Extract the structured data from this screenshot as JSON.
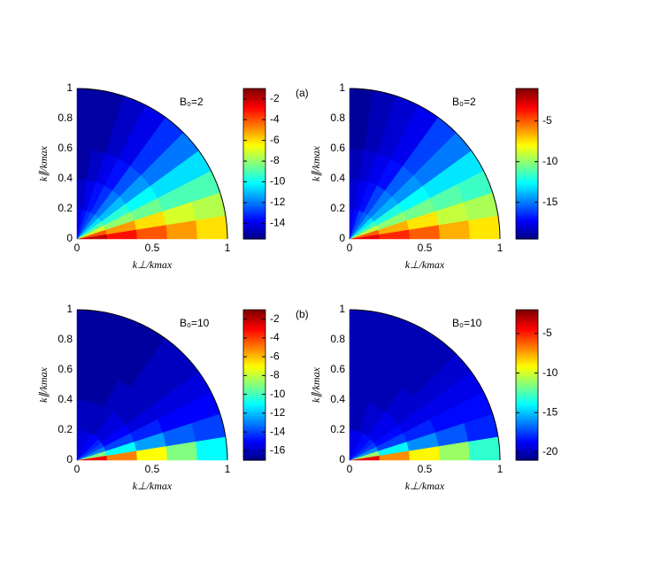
{
  "chart_data": [
    {
      "type": "polar-heatmap",
      "panel_label": "(a)",
      "annotation": "B₀=2",
      "xlabel": "k⊥/kmax",
      "ylabel": "k∥/kmax",
      "xlim": [
        0,
        1
      ],
      "ylim": [
        0,
        1
      ],
      "xticks": [
        0,
        0.5,
        1
      ],
      "yticks": [
        0,
        0.2,
        0.4,
        0.6,
        0.8,
        1
      ],
      "theta_bins": [
        0,
        9,
        18,
        27,
        36,
        45,
        54,
        63,
        72,
        81,
        90
      ],
      "r_bins": [
        0,
        0.2,
        0.4,
        0.6,
        0.8,
        1
      ],
      "colormap": "jet",
      "clim": [
        -15.5,
        -1
      ],
      "cticks": [
        -2,
        -4,
        -6,
        -8,
        -10,
        -12,
        -14
      ],
      "values": [
        [
          -2,
          -3,
          -4,
          -5,
          -6
        ],
        [
          -4,
          -5,
          -6,
          -7,
          -7.5
        ],
        [
          -7,
          -8,
          -8.5,
          -9,
          -9
        ],
        [
          -9,
          -9.5,
          -10,
          -10.5,
          -10.5
        ],
        [
          -10.5,
          -11,
          -11.5,
          -12,
          -12
        ],
        [
          -11.5,
          -12,
          -12.5,
          -13,
          -13
        ],
        [
          -12.5,
          -13,
          -13.5,
          -14,
          -14
        ],
        [
          -13,
          -13.5,
          -14,
          -14.5,
          -14.5
        ],
        [
          -13.5,
          -14,
          -14.5,
          -15,
          -15
        ],
        [
          -14,
          -14.5,
          -15,
          -15,
          -15
        ]
      ]
    },
    {
      "type": "polar-heatmap",
      "annotation": "B₀=2",
      "xlabel": "k⊥/kmax",
      "ylabel": "k∥/kmax",
      "xlim": [
        0,
        1
      ],
      "ylim": [
        0,
        1
      ],
      "xticks": [
        0,
        0.5,
        1
      ],
      "yticks": [
        0,
        0.2,
        0.4,
        0.6,
        0.8,
        1
      ],
      "theta_bins": [
        0,
        9,
        18,
        27,
        36,
        45,
        54,
        63,
        72,
        81,
        90
      ],
      "r_bins": [
        0,
        0.2,
        0.4,
        0.6,
        0.8,
        1
      ],
      "colormap": "jet",
      "clim": [
        -19.5,
        -1
      ],
      "cticks": [
        -5,
        -10,
        -15
      ],
      "values": [
        [
          -3,
          -4,
          -5,
          -6.5,
          -7.5
        ],
        [
          -5,
          -6.5,
          -7.5,
          -9,
          -9.5
        ],
        [
          -9,
          -10,
          -10.5,
          -11,
          -11.5
        ],
        [
          -11.5,
          -12,
          -12.5,
          -13,
          -13
        ],
        [
          -13,
          -14,
          -14.5,
          -15,
          -15
        ],
        [
          -14.5,
          -15,
          -15.5,
          -16,
          -16
        ],
        [
          -15.5,
          -16,
          -17,
          -17.5,
          -17.5
        ],
        [
          -16,
          -17,
          -17.5,
          -18,
          -18
        ],
        [
          -17,
          -17.5,
          -18,
          -18.5,
          -18.5
        ],
        [
          -17.5,
          -18,
          -18.5,
          -19,
          -19
        ]
      ]
    },
    {
      "type": "polar-heatmap",
      "panel_label": "(b)",
      "annotation": "B₀=10",
      "xlabel": "k⊥/kmax",
      "ylabel": "k∥/kmax",
      "xlim": [
        0,
        1
      ],
      "ylim": [
        0,
        1
      ],
      "xticks": [
        0,
        0.5,
        1
      ],
      "yticks": [
        0,
        0.2,
        0.4,
        0.6,
        0.8,
        1
      ],
      "theta_bins": [
        0,
        9,
        18,
        27,
        36,
        45,
        54,
        63,
        72,
        81,
        90
      ],
      "r_bins": [
        0,
        0.2,
        0.4,
        0.6,
        0.8,
        1
      ],
      "colormap": "jet",
      "clim": [
        -17,
        -1
      ],
      "cticks": [
        -2,
        -4,
        -6,
        -8,
        -10,
        -12,
        -14,
        -16
      ],
      "values": [
        [
          -3,
          -5,
          -7,
          -9,
          -11
        ],
        [
          -9,
          -11,
          -12.5,
          -13.5,
          -14
        ],
        [
          -13,
          -14,
          -14.5,
          -15,
          -15
        ],
        [
          -14,
          -15,
          -15.5,
          -15.5,
          -15.5
        ],
        [
          -14.5,
          -15.5,
          -16,
          -16,
          -16
        ],
        [
          -15,
          -15.5,
          -16,
          -16,
          -16
        ],
        [
          -15,
          -16,
          -16,
          -16.5,
          -16.5
        ],
        [
          -15.5,
          -16,
          -16.5,
          -16.5,
          -16.5
        ],
        [
          -15.5,
          -16,
          -16.5,
          -16.5,
          -16.5
        ],
        [
          -15.5,
          -16,
          -16.5,
          -16.5,
          -16.5
        ]
      ]
    },
    {
      "type": "polar-heatmap",
      "annotation": "B₀=10",
      "xlabel": "k⊥/kmax",
      "ylabel": "k∥/kmax",
      "xlim": [
        0,
        1
      ],
      "ylim": [
        0,
        1
      ],
      "xticks": [
        0,
        0.5,
        1
      ],
      "yticks": [
        0,
        0.2,
        0.4,
        0.6,
        0.8,
        1
      ],
      "theta_bins": [
        0,
        9,
        18,
        27,
        36,
        45,
        54,
        63,
        72,
        81,
        90
      ],
      "r_bins": [
        0,
        0.2,
        0.4,
        0.6,
        0.8,
        1
      ],
      "colormap": "jet",
      "clim": [
        -21,
        -2
      ],
      "cticks": [
        -5,
        -10,
        -15,
        -20
      ],
      "values": [
        [
          -4,
          -7,
          -9,
          -11,
          -13
        ],
        [
          -11,
          -14,
          -16,
          -17,
          -18
        ],
        [
          -16,
          -17.5,
          -18,
          -18.5,
          -18.5
        ],
        [
          -17.5,
          -18.5,
          -19,
          -19,
          -19
        ],
        [
          -18,
          -19,
          -19.5,
          -19.5,
          -19.5
        ],
        [
          -18.5,
          -19,
          -19.5,
          -20,
          -20
        ],
        [
          -18.5,
          -19.5,
          -20,
          -20,
          -20
        ],
        [
          -19,
          -19.5,
          -20,
          -20,
          -20
        ],
        [
          -19,
          -20,
          -20,
          -20,
          -20
        ],
        [
          -19,
          -20,
          -20,
          -20,
          -20
        ]
      ]
    }
  ]
}
